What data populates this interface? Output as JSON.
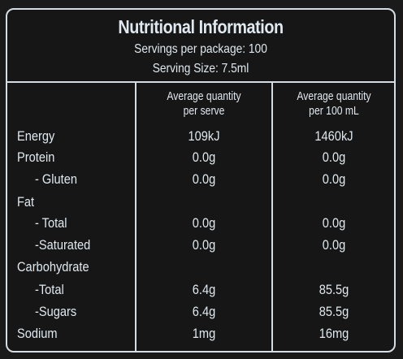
{
  "panel": {
    "title": "Nutritional Information",
    "servings_per_package": "Servings per package: 100",
    "serving_size": "Serving Size: 7.5ml"
  },
  "columns": {
    "per_serve": [
      "Average quantity",
      "per serve"
    ],
    "per_100ml": [
      "Average quantity",
      "per 100 mL"
    ]
  },
  "rows": [
    {
      "label": "Energy",
      "per_serve": "109kJ",
      "per_100ml": "1460kJ"
    },
    {
      "label": "Protein",
      "per_serve": "0.0g",
      "per_100ml": "0.0g"
    },
    {
      "label": "- Gluten",
      "per_serve": "0.0g",
      "per_100ml": "0.0g"
    },
    {
      "label": "Fat",
      "per_serve": "",
      "per_100ml": ""
    },
    {
      "label": "- Total",
      "per_serve": "0.0g",
      "per_100ml": "0.0g"
    },
    {
      "label": "-Saturated",
      "per_serve": "0.0g",
      "per_100ml": "0.0g"
    },
    {
      "label": "Carbohydrate",
      "per_serve": "",
      "per_100ml": ""
    },
    {
      "label": "-Total",
      "per_serve": "6.4g",
      "per_100ml": "85.5g"
    },
    {
      "label": "-Sugars",
      "per_serve": "6.4g",
      "per_100ml": "85.5g"
    },
    {
      "label": "Sodium",
      "per_serve": "1mg",
      "per_100ml": "16mg"
    }
  ]
}
